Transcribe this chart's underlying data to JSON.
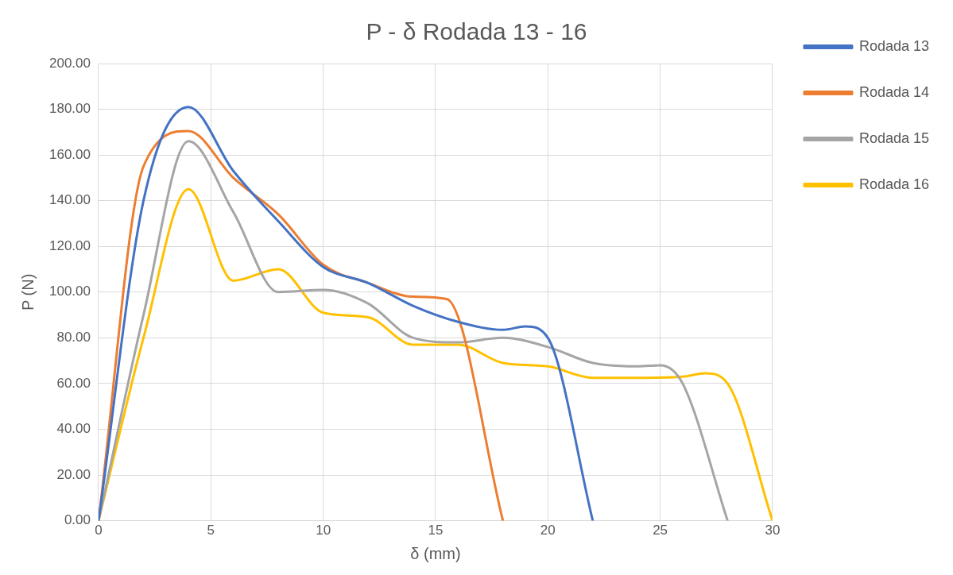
{
  "chart_data": {
    "type": "line",
    "title": "P - δ Rodada 13 - 16",
    "xlabel": "δ (mm)",
    "ylabel": "P (N)",
    "series": [
      {
        "name": "Rodada 13",
        "color": "#4472c4",
        "x": [
          0,
          2,
          4,
          6,
          8,
          10,
          12,
          14,
          16,
          18,
          19,
          20,
          22
        ],
        "values": [
          0,
          140,
          181,
          153,
          131,
          111,
          104,
          94,
          87,
          83.5,
          85,
          80,
          0
        ]
      },
      {
        "name": "Rodada 14",
        "color": "#ed7d31",
        "x": [
          0,
          2,
          4,
          6,
          8,
          10,
          12,
          14,
          15.5,
          18
        ],
        "values": [
          0,
          155,
          170.5,
          150,
          134,
          112,
          104,
          98,
          97,
          0
        ]
      },
      {
        "name": "Rodada 15",
        "color": "#a5a5a5",
        "x": [
          0,
          2,
          4,
          6,
          8,
          10,
          12,
          14,
          16,
          18,
          20,
          22,
          24,
          25,
          26,
          28
        ],
        "values": [
          0,
          90,
          166,
          135,
          100,
          101,
          95,
          80,
          78,
          80,
          76,
          69,
          67.5,
          68,
          60,
          0
        ]
      },
      {
        "name": "Rodada 16",
        "color": "#ffc000",
        "x": [
          0,
          2,
          4,
          6,
          8,
          10,
          12,
          14,
          16,
          18,
          20,
          22,
          24,
          26,
          27,
          28,
          30
        ],
        "values": [
          0,
          80,
          145,
          105,
          110,
          91,
          89,
          77,
          77,
          69,
          67.5,
          62.5,
          62.5,
          63,
          64.5,
          60,
          0
        ]
      }
    ],
    "xlim": [
      0,
      30
    ],
    "xticks": [
      0,
      5,
      10,
      15,
      20,
      25,
      30
    ],
    "ylim": [
      0,
      200
    ],
    "yticks": [
      {
        "value": 0,
        "label": "0.00"
      },
      {
        "value": 20,
        "label": "20.00"
      },
      {
        "value": 40,
        "label": "40.00"
      },
      {
        "value": 60,
        "label": "60.00"
      },
      {
        "value": 80,
        "label": "80.00"
      },
      {
        "value": 100,
        "label": "100.00"
      },
      {
        "value": 120,
        "label": "120.00"
      },
      {
        "value": 140,
        "label": "140.00"
      },
      {
        "value": 160,
        "label": "160.00"
      },
      {
        "value": 180,
        "label": "180.00"
      },
      {
        "value": 200,
        "label": "200.00"
      }
    ],
    "grid": true,
    "legend": "right",
    "marker": "none",
    "line_style": "solid"
  }
}
